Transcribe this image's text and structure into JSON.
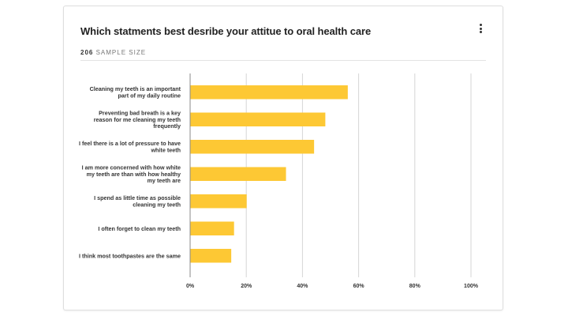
{
  "header": {
    "title": "Which statments best desribe your attitue to oral health care",
    "sample_count": "206",
    "sample_label": "SAMPLE SIZE",
    "menu_icon": "more-vertical-icon"
  },
  "colors": {
    "bar": "#FDC834",
    "grid": "#d6d6d6",
    "axis": "#888888"
  },
  "chart_data": {
    "type": "bar",
    "orientation": "horizontal",
    "categories": [
      [
        "Cleaning my teeth is an important",
        "part of my daily routine"
      ],
      [
        "Preventing bad breath is a key",
        "reason for me cleaning my teeth",
        "frequently"
      ],
      [
        "I feel there is a lot of pressure to have",
        "white teeth"
      ],
      [
        "I am more concerned with how white",
        "my teeth are than with how healthy",
        "my teeth are"
      ],
      [
        "I spend as little time as possible",
        "cleaning my teeth"
      ],
      [
        "I often forget to clean my teeth"
      ],
      [
        "I think most toothpastes are the same"
      ]
    ],
    "values": [
      56,
      48,
      44,
      34,
      20,
      15.5,
      14.5
    ],
    "xlim": [
      0,
      100
    ],
    "xticks": [
      0,
      20,
      40,
      60,
      80,
      100
    ],
    "xtick_labels": [
      "0%",
      "20%",
      "40%",
      "60%",
      "80%",
      "100%"
    ],
    "grid": true,
    "legend": "none"
  }
}
